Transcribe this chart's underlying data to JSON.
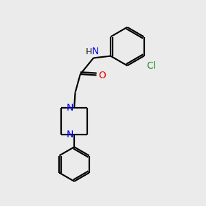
{
  "background_color": "#ebebeb",
  "bond_color": "#000000",
  "N_color": "#0000ee",
  "O_color": "#ee0000",
  "Cl_color": "#228B22",
  "line_width": 1.6,
  "font_size": 10,
  "figsize": [
    3.0,
    3.0
  ],
  "dpi": 100,
  "xlim": [
    0,
    10
  ],
  "ylim": [
    0,
    10
  ]
}
